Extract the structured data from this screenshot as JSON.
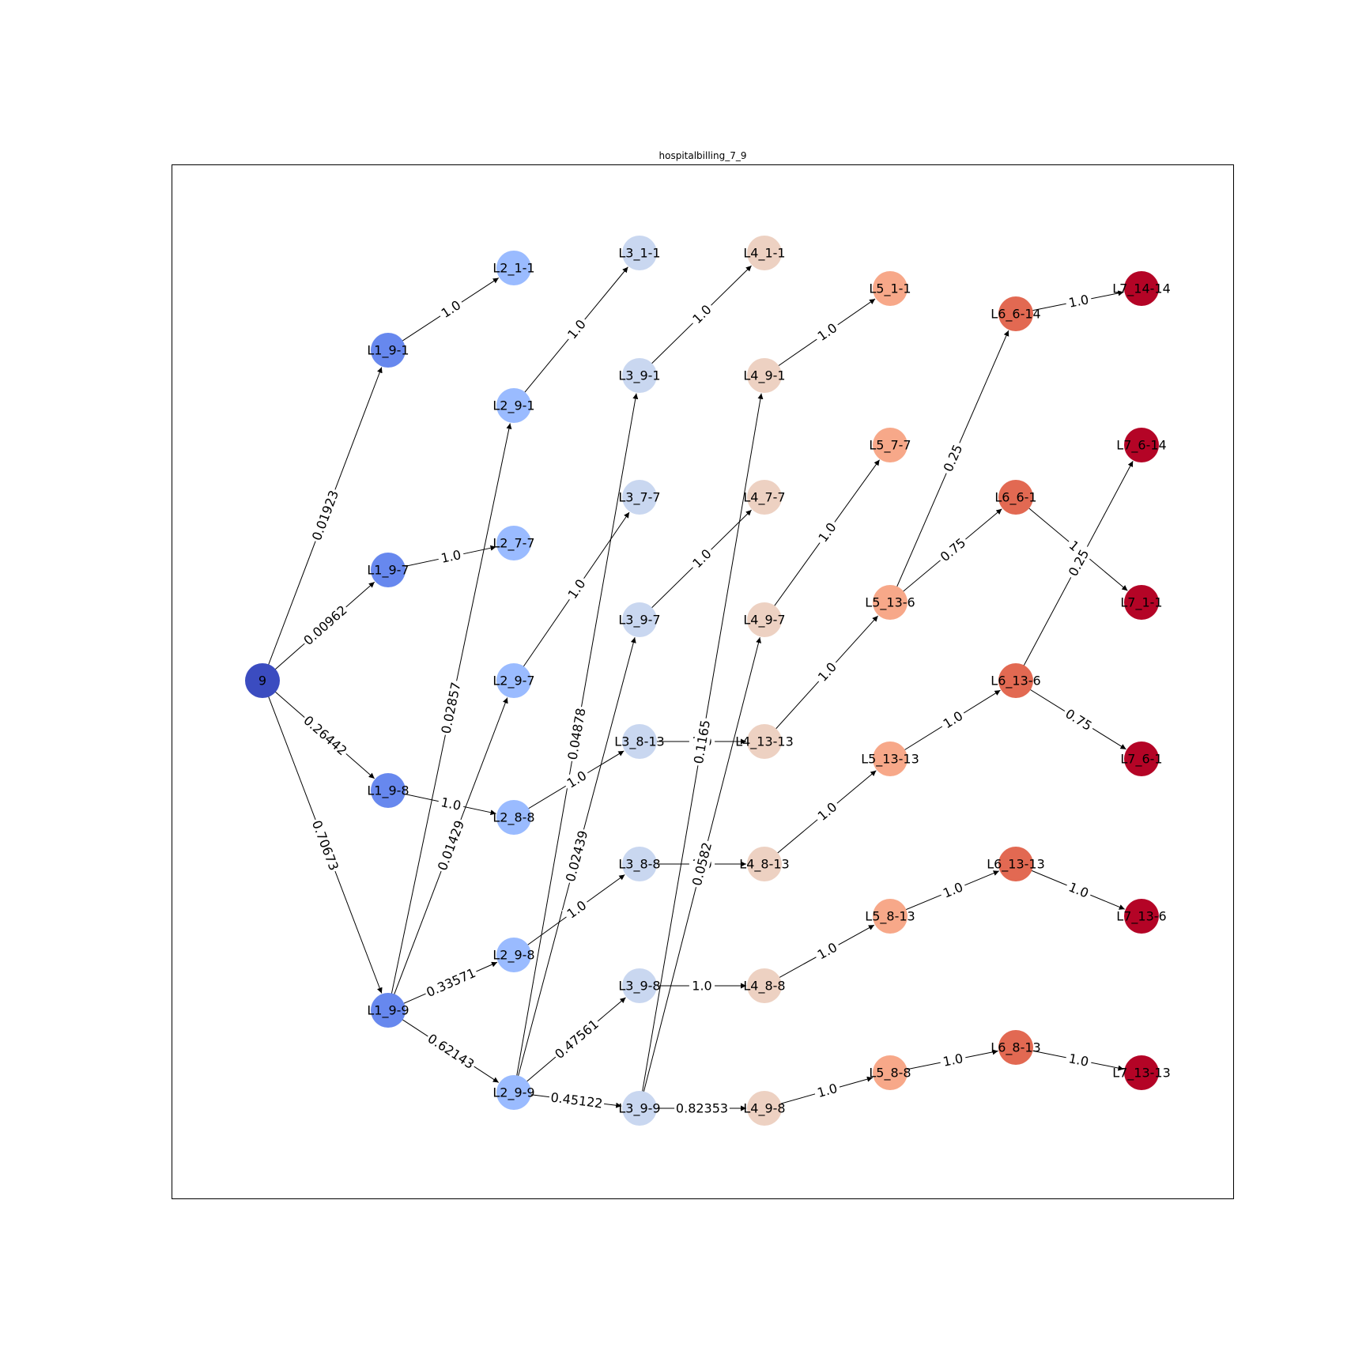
{
  "diagram": {
    "title": "hospitalbilling_7_9",
    "colors": {
      "root": "#3b4cc0",
      "L1": "#6788ee",
      "L2": "#9abbff",
      "L3": "#c9d7f0",
      "L4": "#edd1c2",
      "L5": "#f7a889",
      "L6": "#e26952",
      "L7": "#b40426"
    },
    "nodes": [
      {
        "id": "9",
        "label": "9",
        "level": "root"
      },
      {
        "id": "L1_9-1",
        "label": "L1_9-1",
        "level": "L1"
      },
      {
        "id": "L1_9-7",
        "label": "L1_9-7",
        "level": "L1"
      },
      {
        "id": "L1_9-8",
        "label": "L1_9-8",
        "level": "L1"
      },
      {
        "id": "L1_9-9",
        "label": "L1_9-9",
        "level": "L1"
      },
      {
        "id": "L2_1-1",
        "label": "L2_1-1",
        "level": "L2"
      },
      {
        "id": "L2_9-1",
        "label": "L2_9-1",
        "level": "L2"
      },
      {
        "id": "L2_7-7",
        "label": "L2_7-7",
        "level": "L2"
      },
      {
        "id": "L2_9-7",
        "label": "L2_9-7",
        "level": "L2"
      },
      {
        "id": "L2_8-8",
        "label": "L2_8-8",
        "level": "L2"
      },
      {
        "id": "L2_9-8",
        "label": "L2_9-8",
        "level": "L2"
      },
      {
        "id": "L2_9-9",
        "label": "L2_9-9",
        "level": "L2"
      },
      {
        "id": "L3_1-1",
        "label": "L3_1-1",
        "level": "L3"
      },
      {
        "id": "L3_9-1",
        "label": "L3_9-1",
        "level": "L3"
      },
      {
        "id": "L3_7-7",
        "label": "L3_7-7",
        "level": "L3"
      },
      {
        "id": "L3_9-7",
        "label": "L3_9-7",
        "level": "L3"
      },
      {
        "id": "L3_8-13",
        "label": "L3_8-13",
        "level": "L3"
      },
      {
        "id": "L3_8-8",
        "label": "L3_8-8",
        "level": "L3"
      },
      {
        "id": "L3_9-8",
        "label": "L3_9-8",
        "level": "L3"
      },
      {
        "id": "L3_9-9",
        "label": "L3_9-9",
        "level": "L3"
      },
      {
        "id": "L4_1-1",
        "label": "L4_1-1",
        "level": "L4"
      },
      {
        "id": "L4_9-1",
        "label": "L4_9-1",
        "level": "L4"
      },
      {
        "id": "L4_7-7",
        "label": "L4_7-7",
        "level": "L4"
      },
      {
        "id": "L4_9-7",
        "label": "L4_9-7",
        "level": "L4"
      },
      {
        "id": "L4_13-13",
        "label": "L4_13-13",
        "level": "L4"
      },
      {
        "id": "L4_8-13",
        "label": "L4_8-13",
        "level": "L4"
      },
      {
        "id": "L4_8-8",
        "label": "L4_8-8",
        "level": "L4"
      },
      {
        "id": "L4_9-8",
        "label": "L4_9-8",
        "level": "L4"
      },
      {
        "id": "L5_1-1",
        "label": "L5_1-1",
        "level": "L5"
      },
      {
        "id": "L5_7-7",
        "label": "L5_7-7",
        "level": "L5"
      },
      {
        "id": "L5_13-6",
        "label": "L5_13-6",
        "level": "L5"
      },
      {
        "id": "L5_13-13",
        "label": "L5_13-13",
        "level": "L5"
      },
      {
        "id": "L5_8-13",
        "label": "L5_8-13",
        "level": "L5"
      },
      {
        "id": "L5_8-8",
        "label": "L5_8-8",
        "level": "L5"
      },
      {
        "id": "L6_6-14",
        "label": "L6_6-14",
        "level": "L6"
      },
      {
        "id": "L6_6-1",
        "label": "L6_6-1",
        "level": "L6"
      },
      {
        "id": "L6_13-6",
        "label": "L6_13-6",
        "level": "L6"
      },
      {
        "id": "L6_13-13",
        "label": "L6_13-13",
        "level": "L6"
      },
      {
        "id": "L6_8-13",
        "label": "L6_8-13",
        "level": "L6"
      },
      {
        "id": "L7_14-14",
        "label": "L7_14-14",
        "level": "L7"
      },
      {
        "id": "L7_6-14",
        "label": "L7_6-14",
        "level": "L7"
      },
      {
        "id": "L7_1-1",
        "label": "L7_1-1",
        "level": "L7"
      },
      {
        "id": "L7_6-1",
        "label": "L7_6-1",
        "level": "L7"
      },
      {
        "id": "L7_13-6",
        "label": "L7_13-6",
        "level": "L7"
      },
      {
        "id": "L7_13-13",
        "label": "L7_13-13",
        "level": "L7"
      }
    ],
    "edges": [
      {
        "from": "9",
        "to": "L1_9-1",
        "label": "0.01923"
      },
      {
        "from": "9",
        "to": "L1_9-7",
        "label": "0.00962"
      },
      {
        "from": "9",
        "to": "L1_9-8",
        "label": "0.26442"
      },
      {
        "from": "9",
        "to": "L1_9-9",
        "label": "0.70673"
      },
      {
        "from": "L1_9-1",
        "to": "L2_1-1",
        "label": "1.0"
      },
      {
        "from": "L1_9-7",
        "to": "L2_7-7",
        "label": "1.0"
      },
      {
        "from": "L1_9-8",
        "to": "L2_8-8",
        "label": "1.0"
      },
      {
        "from": "L1_9-9",
        "to": "L2_9-1",
        "label": "0.02857"
      },
      {
        "from": "L1_9-9",
        "to": "L2_9-7",
        "label": "0.01429"
      },
      {
        "from": "L1_9-9",
        "to": "L2_9-8",
        "label": "0.33571"
      },
      {
        "from": "L1_9-9",
        "to": "L2_9-9",
        "label": "0.62143"
      },
      {
        "from": "L2_9-1",
        "to": "L3_1-1",
        "label": "1.0"
      },
      {
        "from": "L2_9-7",
        "to": "L3_7-7",
        "label": "1.0"
      },
      {
        "from": "L2_8-8",
        "to": "L3_8-13",
        "label": "1.0"
      },
      {
        "from": "L2_9-8",
        "to": "L3_8-8",
        "label": "1.0"
      },
      {
        "from": "L2_9-9",
        "to": "L3_9-1",
        "label": "0.04878"
      },
      {
        "from": "L2_9-9",
        "to": "L3_9-7",
        "label": "0.02439"
      },
      {
        "from": "L2_9-9",
        "to": "L3_9-8",
        "label": "0.47561"
      },
      {
        "from": "L2_9-9",
        "to": "L3_9-9",
        "label": "0.45122"
      },
      {
        "from": "L3_9-1",
        "to": "L4_1-1",
        "label": "1.0"
      },
      {
        "from": "L3_9-7",
        "to": "L4_7-7",
        "label": "1.0"
      },
      {
        "from": "L3_8-13",
        "to": "L4_13-13",
        "label": "1.0"
      },
      {
        "from": "L3_8-8",
        "to": "L4_8-13",
        "label": "1.0"
      },
      {
        "from": "L3_9-8",
        "to": "L4_8-8",
        "label": "1.0"
      },
      {
        "from": "L3_9-9",
        "to": "L4_9-1",
        "label": "0.1165"
      },
      {
        "from": "L3_9-9",
        "to": "L4_9-7",
        "label": "0.0582"
      },
      {
        "from": "L3_9-9",
        "to": "L4_9-8",
        "label": "0.82353"
      },
      {
        "from": "L4_9-1",
        "to": "L5_1-1",
        "label": "1.0"
      },
      {
        "from": "L4_9-7",
        "to": "L5_7-7",
        "label": "1.0"
      },
      {
        "from": "L4_13-13",
        "to": "L5_13-6",
        "label": "1.0"
      },
      {
        "from": "L4_8-13",
        "to": "L5_13-13",
        "label": "1.0"
      },
      {
        "from": "L4_8-8",
        "to": "L5_8-13",
        "label": "1.0"
      },
      {
        "from": "L4_9-8",
        "to": "L5_8-8",
        "label": "1.0"
      },
      {
        "from": "L5_13-6",
        "to": "L6_6-14",
        "label": "0.25"
      },
      {
        "from": "L5_13-6",
        "to": "L6_6-1",
        "label": "0.75"
      },
      {
        "from": "L5_13-13",
        "to": "L6_13-6",
        "label": "1.0"
      },
      {
        "from": "L5_8-13",
        "to": "L6_13-13",
        "label": "1.0"
      },
      {
        "from": "L5_8-8",
        "to": "L6_8-13",
        "label": "1.0"
      },
      {
        "from": "L6_6-14",
        "to": "L7_14-14",
        "label": "1.0"
      },
      {
        "from": "L6_6-1",
        "to": "L7_1-1",
        "label": "1.0"
      },
      {
        "from": "L6_13-6",
        "to": "L7_6-14",
        "label": "0.25"
      },
      {
        "from": "L6_13-6",
        "to": "L7_6-1",
        "label": "0.75"
      },
      {
        "from": "L6_13-13",
        "to": "L7_13-6",
        "label": "1.0"
      },
      {
        "from": "L6_8-13",
        "to": "L7_13-13",
        "label": "1.0"
      }
    ]
  }
}
